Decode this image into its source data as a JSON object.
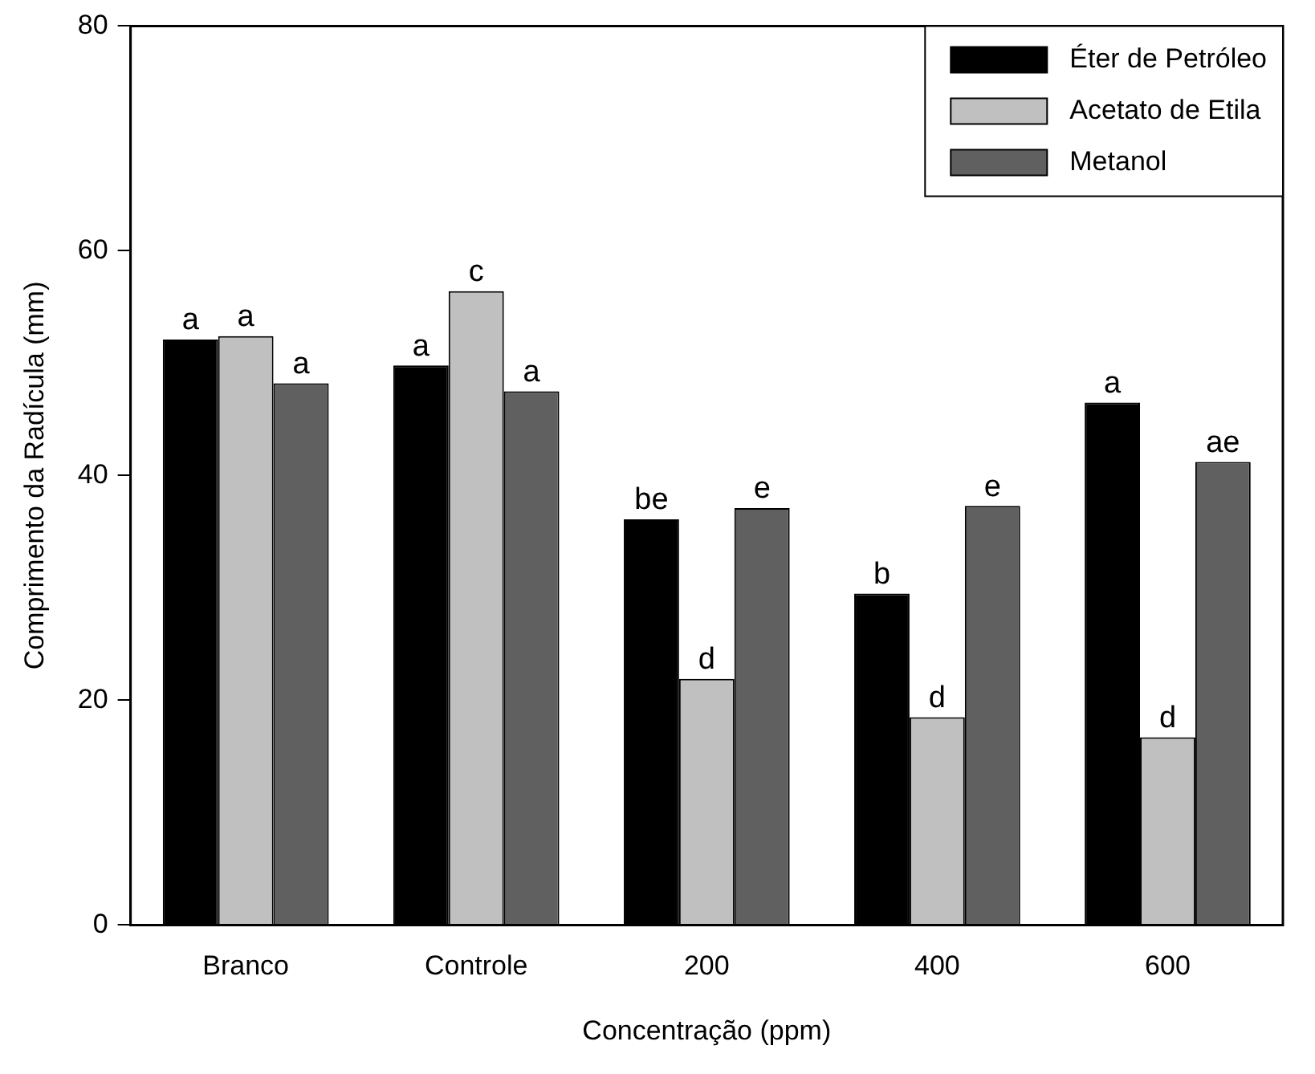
{
  "chart_data": {
    "type": "bar",
    "xlabel": "Concentração (ppm)",
    "ylabel": "Comprimento da Radícula (mm)",
    "categories": [
      "Branco",
      "Controle",
      "200",
      "400",
      "600"
    ],
    "series": [
      {
        "name": "Éter de Petróleo",
        "color": "#000000",
        "values": [
          52.1,
          49.8,
          36.1,
          29.5,
          46.5
        ],
        "value_labels": [
          "a",
          "a",
          "be",
          "b",
          "a"
        ]
      },
      {
        "name": "Acetato de Etila",
        "color": "#c0c0c0",
        "values": [
          52.4,
          56.4,
          21.9,
          18.5,
          16.7
        ],
        "value_labels": [
          "a",
          "c",
          "d",
          "d",
          "d"
        ]
      },
      {
        "name": "Metanol",
        "color": "#606060",
        "values": [
          48.2,
          47.5,
          37.1,
          37.3,
          41.2
        ],
        "value_labels": [
          "a",
          "a",
          "e",
          "e",
          "ae"
        ]
      }
    ],
    "ylim": [
      0,
      80
    ],
    "yticks": [
      0,
      20,
      40,
      60,
      80
    ],
    "grid": false,
    "legend": "top right"
  }
}
